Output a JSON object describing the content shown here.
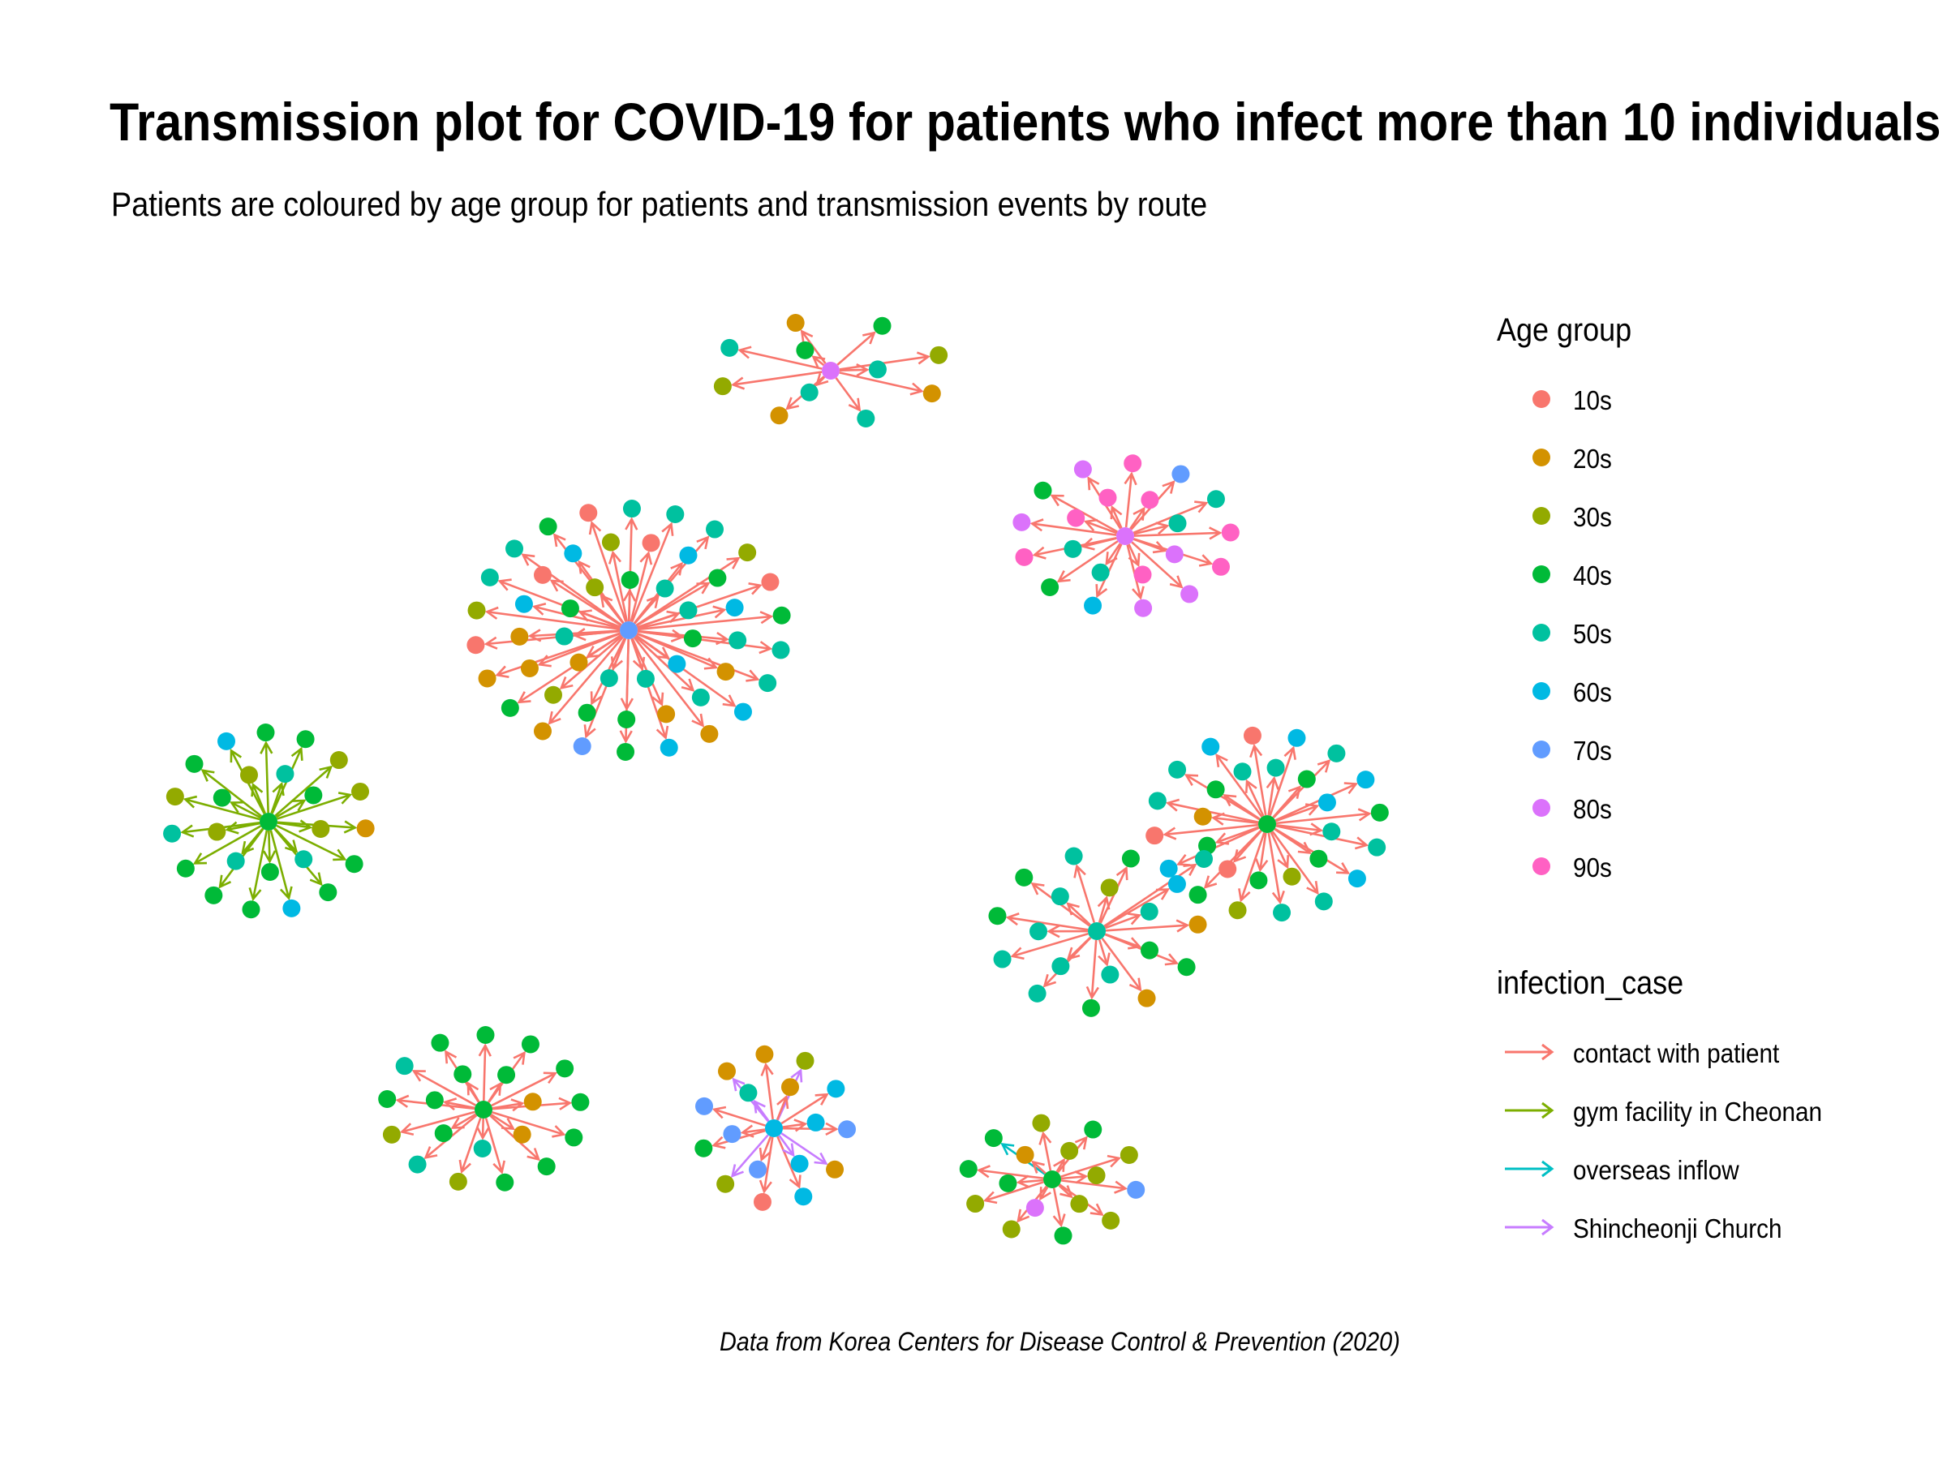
{
  "title": "Transmission plot for COVID-19 for patients who infect more than 10 individuals",
  "subtitle": "Patients are coloured by age group for patients and transmission events by route",
  "caption": "Data from Korea Centers for Disease Control & Prevention (2020)",
  "legend": {
    "age_title": "Age group",
    "age_groups": [
      {
        "label": "10s",
        "color": "#F8766D"
      },
      {
        "label": "20s",
        "color": "#D39200"
      },
      {
        "label": "30s",
        "color": "#93AA00"
      },
      {
        "label": "40s",
        "color": "#00BA38"
      },
      {
        "label": "50s",
        "color": "#00C19F"
      },
      {
        "label": "60s",
        "color": "#00B9E3"
      },
      {
        "label": "70s",
        "color": "#619CFF"
      },
      {
        "label": "80s",
        "color": "#DB72FB"
      },
      {
        "label": "90s",
        "color": "#FF61C3"
      }
    ],
    "case_title": "infection_case",
    "infection_cases": [
      {
        "label": "contact with patient",
        "color": "#F8766D"
      },
      {
        "label": "gym facility in Cheonan",
        "color": "#7CAE00"
      },
      {
        "label": "overseas inflow",
        "color": "#00BFC4"
      },
      {
        "label": "Shincheonji Church",
        "color": "#C77CFF"
      }
    ]
  },
  "chart_data": {
    "type": "network",
    "clusters": [
      {
        "id": "top",
        "hub_age": "80s",
        "leaf_ages": [
          "40s",
          "30s",
          "20s",
          "50s",
          "20s",
          "30s",
          "50s",
          "20s",
          "50s",
          "50s",
          "40s"
        ],
        "edge_routes": [
          "contact with patient"
        ]
      },
      {
        "id": "upper-right",
        "hub_age": "80s",
        "leaf_ages": [
          "90s",
          "70s",
          "50s",
          "90s",
          "90s",
          "80s",
          "80s",
          "60s",
          "40s",
          "90s",
          "80s",
          "40s",
          "80s",
          "90s",
          "50s",
          "80s",
          "90s",
          "50s",
          "50s",
          "90s",
          "90s"
        ],
        "edge_routes": [
          "contact with patient"
        ]
      },
      {
        "id": "center-large",
        "hub_age": "70s",
        "leaf_ages": [
          "50s",
          "50s",
          "50s",
          "30s",
          "10s",
          "40s",
          "50s",
          "50s",
          "60s",
          "20s",
          "60s",
          "40s",
          "70s",
          "20s",
          "40s",
          "20s",
          "10s",
          "30s",
          "50s",
          "50s",
          "40s",
          "10s",
          "10s",
          "60s",
          "40s",
          "60s",
          "50s",
          "20s",
          "50s",
          "20s",
          "40s",
          "40s",
          "30s",
          "20s",
          "20s",
          "60s",
          "10s",
          "60s",
          "30s",
          "40s",
          "50s",
          "50s",
          "40s",
          "60s",
          "50s",
          "50s",
          "20s",
          "50s",
          "40s",
          "30s"
        ],
        "edge_routes": [
          "contact with patient"
        ]
      },
      {
        "id": "left-gym",
        "hub_age": "40s",
        "leaf_ages": [
          "40s",
          "40s",
          "30s",
          "30s",
          "20s",
          "40s",
          "40s",
          "60s",
          "40s",
          "40s",
          "40s",
          "50s",
          "30s",
          "40s",
          "60s",
          "50s",
          "40s",
          "30s",
          "50s",
          "40s",
          "50s",
          "30s",
          "40s",
          "30s"
        ],
        "edge_routes": [
          "gym facility in Cheonan"
        ]
      },
      {
        "id": "right-a",
        "hub_age": "40s",
        "leaf_ages": [
          "10s",
          "60s",
          "50s",
          "60s",
          "40s",
          "50s",
          "60s",
          "50s",
          "50s",
          "30s",
          "40s",
          "60s",
          "10s",
          "50s",
          "50s",
          "60s",
          "50s",
          "40s",
          "60s",
          "50s",
          "40s",
          "30s",
          "40s",
          "10s",
          "40s",
          "20s",
          "40s",
          "50s"
        ],
        "edge_routes": [
          "contact with patient"
        ]
      },
      {
        "id": "right-b",
        "hub_age": "50s",
        "leaf_ages": [
          "50s",
          "40s",
          "60s",
          "20s",
          "40s",
          "20s",
          "40s",
          "50s",
          "50s",
          "40s",
          "40s",
          "30s",
          "50s",
          "40s",
          "50s",
          "50s",
          "50s",
          "50s"
        ],
        "edge_routes": [
          "contact with patient"
        ]
      },
      {
        "id": "bottom-left",
        "hub_age": "40s",
        "leaf_ages": [
          "40s",
          "40s",
          "40s",
          "40s",
          "40s",
          "40s",
          "40s",
          "30s",
          "50s",
          "30s",
          "40s",
          "50s",
          "40s",
          "40s",
          "20s",
          "20s",
          "50s",
          "40s",
          "40s",
          "40s"
        ],
        "edge_routes": [
          "contact with patient"
        ]
      },
      {
        "id": "bottom-middle",
        "hub_age": "60s",
        "leaf_ages": [
          "20s",
          "30s",
          "60s",
          "70s",
          "20s",
          "60s",
          "10s",
          "30s",
          "40s",
          "70s",
          "20s",
          "20s",
          "60s",
          "60s",
          "70s",
          "70s",
          "50s"
        ],
        "edge_routes": [
          "contact with patient",
          "Shincheonji Church"
        ]
      },
      {
        "id": "bottom-right",
        "hub_age": "40s",
        "leaf_ages": [
          "30s",
          "40s",
          "30s",
          "70s",
          "30s",
          "40s",
          "30s",
          "30s",
          "40s",
          "40s",
          "30s",
          "30s",
          "30s",
          "80s",
          "40s",
          "20s"
        ],
        "edge_routes": [
          "contact with patient",
          "overseas inflow"
        ]
      }
    ],
    "links_between_clusters": [
      {
        "from": "right-b",
        "to": "right-a",
        "route": "contact with patient"
      }
    ]
  }
}
